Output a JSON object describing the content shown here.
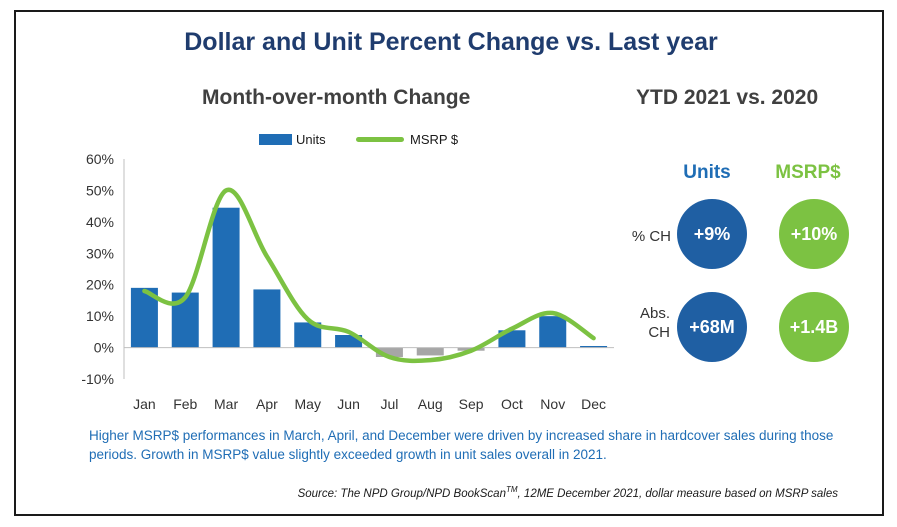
{
  "title": "Dollar and Unit Percent Change vs. Last year",
  "left_panel": {
    "title": "Month-over-month Change"
  },
  "right_panel": {
    "title": "YTD 2021 vs. 2020",
    "col_units": "Units",
    "col_msrp": "MSRP$",
    "row_pct": "% CH",
    "row_abs_1": "Abs.",
    "row_abs_2": "CH",
    "units_pct": "+9%",
    "msrp_pct": "+10%",
    "units_abs": "+68M",
    "msrp_abs": "+1.4B"
  },
  "colors": {
    "units": "#1f6db5",
    "msrp": "#7cc242",
    "negative_bar": "#a6a6a6",
    "title": "#1f3c6e"
  },
  "chart_data": {
    "type": "bar",
    "categories": [
      "Jan",
      "Feb",
      "Mar",
      "Apr",
      "May",
      "Jun",
      "Jul",
      "Aug",
      "Sep",
      "Oct",
      "Nov",
      "Dec"
    ],
    "series": [
      {
        "name": "Units",
        "type": "bar",
        "values": [
          19,
          17.5,
          44.5,
          18.5,
          8,
          4,
          -3,
          -2.5,
          -1,
          5.5,
          10,
          0.5
        ]
      },
      {
        "name": "MSRP $",
        "type": "line",
        "values": [
          18,
          16,
          50,
          29,
          9,
          5,
          -3,
          -4,
          -1,
          6,
          11,
          3
        ]
      }
    ],
    "ylim": [
      -10,
      60
    ],
    "yticks": [
      "-10%",
      "0%",
      "10%",
      "20%",
      "30%",
      "40%",
      "50%",
      "60%"
    ],
    "legend": "top",
    "grid": false
  },
  "footnote": "Higher MSRP$ performances in March, April, and December were driven by increased share in hardcover sales during those periods. Growth in MSRP$ value slightly exceeded growth in unit sales overall in 2021.",
  "source": {
    "pre": "Source: The NPD Group/NPD BookScan",
    "tm": "TM",
    "post": ", 12ME December 2021, dollar measure based on MSRP sales"
  }
}
